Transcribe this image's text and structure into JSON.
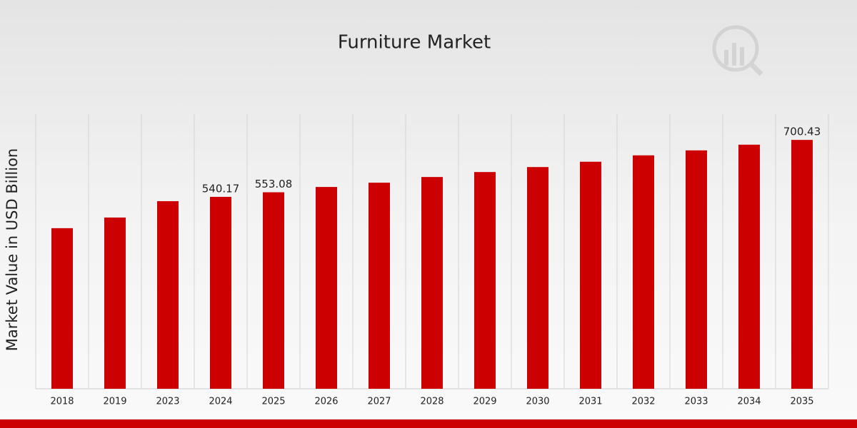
{
  "chart_data": {
    "type": "bar",
    "title": "Furniture Market",
    "y_label": "Market Value in USD Billion",
    "categories": [
      "2018",
      "2019",
      "2023",
      "2024",
      "2025",
      "2026",
      "2027",
      "2028",
      "2029",
      "2030",
      "2031",
      "2032",
      "2033",
      "2034",
      "2035"
    ],
    "values": [
      452,
      482,
      528,
      540.17,
      553.08,
      568,
      580,
      596,
      610,
      624,
      639,
      657,
      671,
      687,
      700.43
    ],
    "value_labels": [
      null,
      null,
      null,
      "540.17",
      "553.08",
      null,
      null,
      null,
      null,
      null,
      null,
      null,
      null,
      null,
      "700.43"
    ],
    "color": "#cc0000",
    "ylim": [
      0,
      773
    ],
    "grid": true
  }
}
